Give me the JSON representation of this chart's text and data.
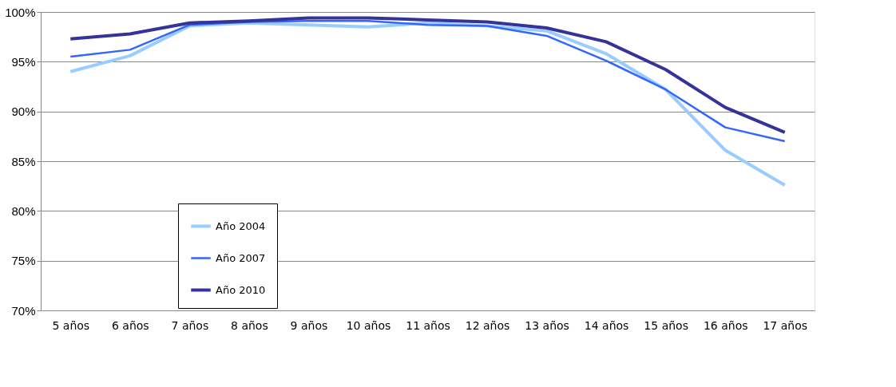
{
  "chart_data": {
    "type": "line",
    "categories": [
      "5 años",
      "6 años",
      "7 años",
      "8 años",
      "9 años",
      "10 años",
      "11 años",
      "12 años",
      "13 años",
      "14 años",
      "15 años",
      "16 años",
      "17 años"
    ],
    "series": [
      {
        "name": "Año 2004",
        "color": "#99ccff",
        "values": [
          94.0,
          95.6,
          98.6,
          98.9,
          98.7,
          98.5,
          98.9,
          98.6,
          98.1,
          95.8,
          92.2,
          86.1,
          82.6
        ]
      },
      {
        "name": "Año 2007",
        "color": "#3366ff",
        "values": [
          95.5,
          96.2,
          98.7,
          99.0,
          99.1,
          99.1,
          98.7,
          98.6,
          97.6,
          95.1,
          92.2,
          88.4,
          87.0
        ]
      },
      {
        "name": "Año 2010",
        "color": "#333399",
        "values": [
          97.3,
          97.8,
          98.9,
          99.1,
          99.4,
          99.4,
          99.2,
          99.0,
          98.4,
          97.0,
          94.2,
          90.4,
          87.9
        ]
      }
    ],
    "ylim": [
      70,
      100
    ],
    "yticks": [
      {
        "value": 70,
        "label": "70%"
      },
      {
        "value": 75,
        "label": "75%"
      },
      {
        "value": 80,
        "label": "80%"
      },
      {
        "value": 85,
        "label": "85%"
      },
      {
        "value": 90,
        "label": "90%"
      },
      {
        "value": 95,
        "label": "95%"
      },
      {
        "value": 100,
        "label": "100%"
      }
    ],
    "grid": "y",
    "legend": "bottom left",
    "marker": "none",
    "line_style": "solid"
  }
}
